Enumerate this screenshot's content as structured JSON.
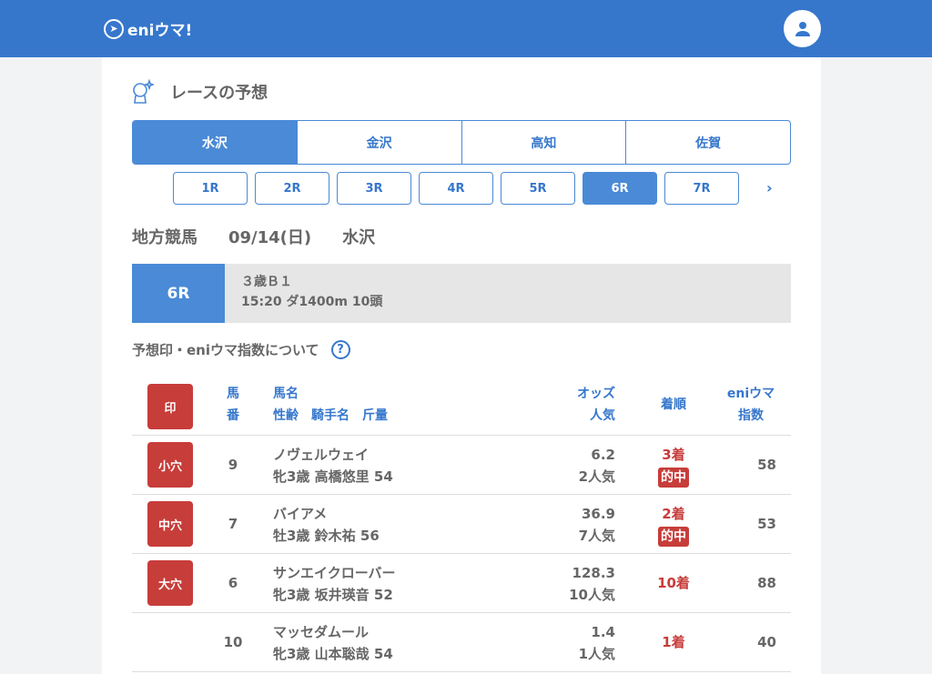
{
  "header": {
    "logo": "eniウマ!",
    "avatar_icon": "user-icon"
  },
  "page_title": "レースの予想",
  "venues": [
    {
      "label": "水沢",
      "active": true
    },
    {
      "label": "金沢"
    },
    {
      "label": "高知"
    },
    {
      "label": "佐賀"
    }
  ],
  "races": [
    {
      "label": "1R"
    },
    {
      "label": "2R"
    },
    {
      "label": "3R"
    },
    {
      "label": "4R"
    },
    {
      "label": "5R"
    },
    {
      "label": "6R",
      "active": true
    },
    {
      "label": "7R"
    }
  ],
  "next_arrow": "›",
  "dateline": {
    "category": "地方競馬",
    "date": "09/14(日)",
    "venue": "水沢"
  },
  "race": {
    "number": "6R",
    "class": "３歳Ｂ１",
    "detail": "15:20 ダ1400m 10頭"
  },
  "about": "予想印・eniウマ指数について",
  "about_icon": "?",
  "table": {
    "header": {
      "mark": "印",
      "num1": "馬",
      "num2": "番",
      "name": "馬名",
      "sub": "性齢　騎手名　斤量",
      "odds": "オッズ",
      "pop": "人気",
      "result": "着順",
      "idx1": "eniウマ",
      "idx2": "指数"
    },
    "rows": [
      {
        "mark": "小穴",
        "num": "9",
        "name": "ノヴェルウェイ",
        "sub": "牝3歳 高橋悠里 54",
        "odds": "6.2",
        "pop": "2人気",
        "result": "3着",
        "hit": "的中",
        "index": "58"
      },
      {
        "mark": "中穴",
        "num": "7",
        "name": "バイアメ",
        "sub": "牡3歳 鈴木祐 56",
        "odds": "36.9",
        "pop": "7人気",
        "result": "2着",
        "hit": "的中",
        "index": "53"
      },
      {
        "mark": "大穴",
        "num": "6",
        "name": "サンエイクローバー",
        "sub": "牝3歳 坂井瑛音 52",
        "odds": "128.3",
        "pop": "10人気",
        "result": "10着",
        "hit": "",
        "index": "88"
      },
      {
        "mark": "",
        "num": "10",
        "name": "マッセダムール",
        "sub": "牝3歳 山本聡哉 54",
        "odds": "1.4",
        "pop": "1人気",
        "result": "1着",
        "hit": "",
        "index": "40"
      }
    ]
  },
  "colors": {
    "brand": "#3677cc",
    "accent": "#4a8ad6",
    "mark": "#c73d3a"
  }
}
